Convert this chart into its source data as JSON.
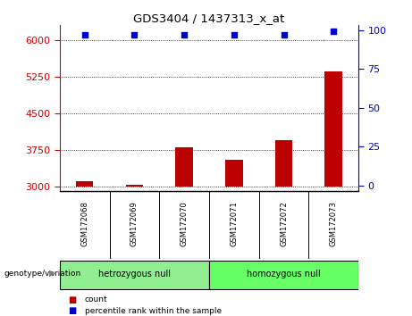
{
  "title": "GDS3404 / 1437313_x_at",
  "samples": [
    "GSM172068",
    "GSM172069",
    "GSM172070",
    "GSM172071",
    "GSM172072",
    "GSM172073"
  ],
  "counts": [
    3100,
    3030,
    3800,
    3550,
    3950,
    5350
  ],
  "percentile_ranks": [
    97,
    97,
    97,
    97,
    97,
    99
  ],
  "ylim_left": [
    2900,
    6300
  ],
  "yticks_left": [
    3000,
    3750,
    4500,
    5250,
    6000
  ],
  "ylim_right": [
    -3.5,
    103
  ],
  "yticks_right": [
    0,
    25,
    50,
    75,
    100
  ],
  "groups": [
    {
      "label": "hetrozygous null",
      "indices": [
        0,
        1,
        2
      ],
      "color": "#90EE90"
    },
    {
      "label": "homozygous null",
      "indices": [
        3,
        4,
        5
      ],
      "color": "#66FF66"
    }
  ],
  "bar_color": "#BB0000",
  "dot_color": "#0000CC",
  "bar_width": 0.35,
  "ylabel_left_color": "#CC0000",
  "ylabel_right_color": "#0000CC",
  "grid_color": "#000000",
  "background_labels": "#C8C8C8",
  "legend_count_color": "#BB0000",
  "legend_pct_color": "#0000CC",
  "genotype_label": "genotype/variation",
  "legend_count": "count",
  "legend_pct": "percentile rank within the sample"
}
